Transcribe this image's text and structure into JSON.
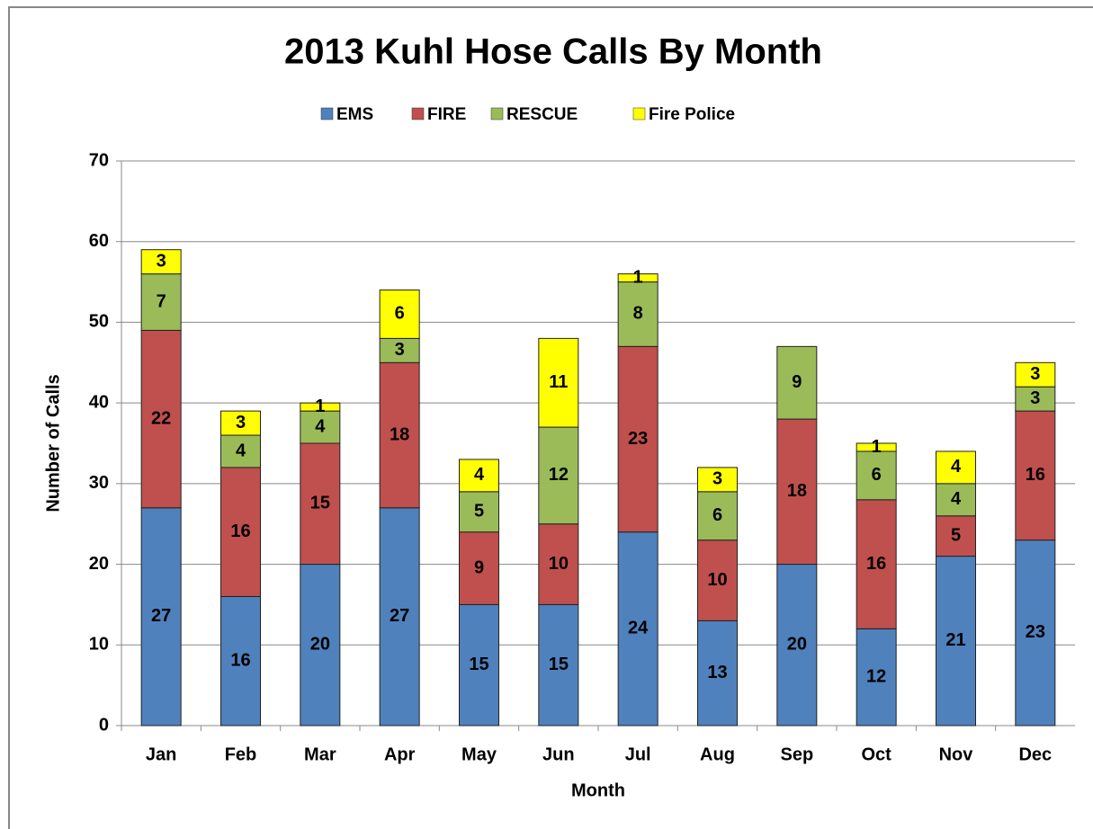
{
  "chart_data": {
    "type": "stacked_bar",
    "title": "2013 Kuhl Hose Calls By Month",
    "x_label": "Month",
    "y_label": "Number of Calls",
    "categories": [
      "Jan",
      "Feb",
      "Mar",
      "Apr",
      "May",
      "Jun",
      "Jul",
      "Aug",
      "Sep",
      "Oct",
      "Nov",
      "Dec"
    ],
    "series": [
      {
        "name": "EMS",
        "color": "#4f81bd",
        "values": [
          27,
          16,
          20,
          27,
          15,
          15,
          24,
          13,
          20,
          12,
          21,
          23
        ]
      },
      {
        "name": "FIRE",
        "color": "#c0504d",
        "values": [
          22,
          16,
          15,
          18,
          9,
          10,
          23,
          10,
          18,
          16,
          5,
          16
        ]
      },
      {
        "name": "RESCUE",
        "color": "#9bbb59",
        "values": [
          7,
          4,
          4,
          3,
          5,
          12,
          8,
          6,
          9,
          6,
          4,
          3
        ]
      },
      {
        "name": "Fire Police",
        "color": "#ffff00",
        "values": [
          3,
          3,
          1,
          6,
          4,
          11,
          1,
          3,
          null,
          1,
          4,
          3
        ]
      }
    ],
    "ylim": [
      0,
      70
    ],
    "yticks": [
      0,
      10,
      20,
      30,
      40,
      50,
      60,
      70
    ],
    "grid": true,
    "legend": "top"
  }
}
